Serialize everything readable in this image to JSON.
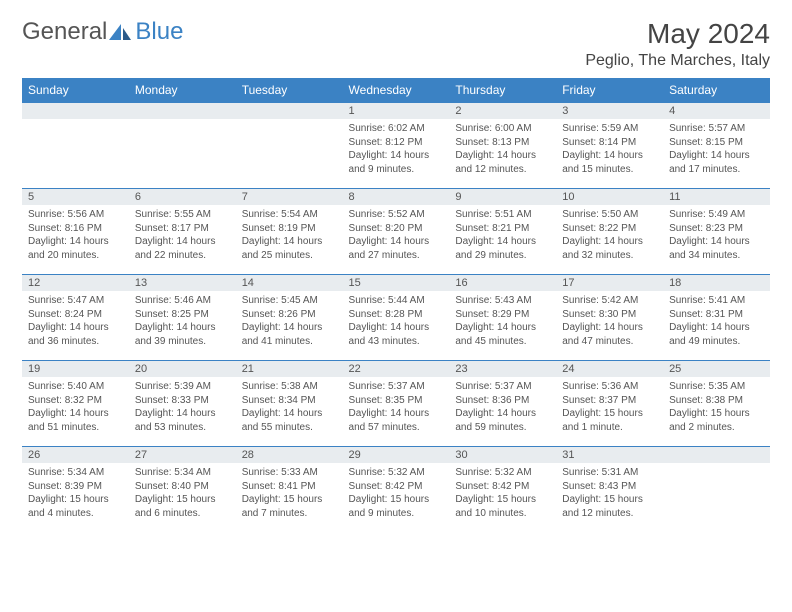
{
  "brand": {
    "name_part1": "General",
    "name_part2": "Blue",
    "logo_color": "#3b82c4"
  },
  "title": "May 2024",
  "location": "Peglio, The Marches, Italy",
  "colors": {
    "header_bg": "#3b82c4",
    "header_text": "#ffffff",
    "daynum_bg": "#e8ecef",
    "text": "#555555",
    "border": "#3b82c4"
  },
  "day_names": [
    "Sunday",
    "Monday",
    "Tuesday",
    "Wednesday",
    "Thursday",
    "Friday",
    "Saturday"
  ],
  "weeks": [
    [
      {
        "day": "",
        "lines": []
      },
      {
        "day": "",
        "lines": []
      },
      {
        "day": "",
        "lines": []
      },
      {
        "day": "1",
        "lines": [
          "Sunrise: 6:02 AM",
          "Sunset: 8:12 PM",
          "Daylight: 14 hours and 9 minutes."
        ]
      },
      {
        "day": "2",
        "lines": [
          "Sunrise: 6:00 AM",
          "Sunset: 8:13 PM",
          "Daylight: 14 hours and 12 minutes."
        ]
      },
      {
        "day": "3",
        "lines": [
          "Sunrise: 5:59 AM",
          "Sunset: 8:14 PM",
          "Daylight: 14 hours and 15 minutes."
        ]
      },
      {
        "day": "4",
        "lines": [
          "Sunrise: 5:57 AM",
          "Sunset: 8:15 PM",
          "Daylight: 14 hours and 17 minutes."
        ]
      }
    ],
    [
      {
        "day": "5",
        "lines": [
          "Sunrise: 5:56 AM",
          "Sunset: 8:16 PM",
          "Daylight: 14 hours and 20 minutes."
        ]
      },
      {
        "day": "6",
        "lines": [
          "Sunrise: 5:55 AM",
          "Sunset: 8:17 PM",
          "Daylight: 14 hours and 22 minutes."
        ]
      },
      {
        "day": "7",
        "lines": [
          "Sunrise: 5:54 AM",
          "Sunset: 8:19 PM",
          "Daylight: 14 hours and 25 minutes."
        ]
      },
      {
        "day": "8",
        "lines": [
          "Sunrise: 5:52 AM",
          "Sunset: 8:20 PM",
          "Daylight: 14 hours and 27 minutes."
        ]
      },
      {
        "day": "9",
        "lines": [
          "Sunrise: 5:51 AM",
          "Sunset: 8:21 PM",
          "Daylight: 14 hours and 29 minutes."
        ]
      },
      {
        "day": "10",
        "lines": [
          "Sunrise: 5:50 AM",
          "Sunset: 8:22 PM",
          "Daylight: 14 hours and 32 minutes."
        ]
      },
      {
        "day": "11",
        "lines": [
          "Sunrise: 5:49 AM",
          "Sunset: 8:23 PM",
          "Daylight: 14 hours and 34 minutes."
        ]
      }
    ],
    [
      {
        "day": "12",
        "lines": [
          "Sunrise: 5:47 AM",
          "Sunset: 8:24 PM",
          "Daylight: 14 hours and 36 minutes."
        ]
      },
      {
        "day": "13",
        "lines": [
          "Sunrise: 5:46 AM",
          "Sunset: 8:25 PM",
          "Daylight: 14 hours and 39 minutes."
        ]
      },
      {
        "day": "14",
        "lines": [
          "Sunrise: 5:45 AM",
          "Sunset: 8:26 PM",
          "Daylight: 14 hours and 41 minutes."
        ]
      },
      {
        "day": "15",
        "lines": [
          "Sunrise: 5:44 AM",
          "Sunset: 8:28 PM",
          "Daylight: 14 hours and 43 minutes."
        ]
      },
      {
        "day": "16",
        "lines": [
          "Sunrise: 5:43 AM",
          "Sunset: 8:29 PM",
          "Daylight: 14 hours and 45 minutes."
        ]
      },
      {
        "day": "17",
        "lines": [
          "Sunrise: 5:42 AM",
          "Sunset: 8:30 PM",
          "Daylight: 14 hours and 47 minutes."
        ]
      },
      {
        "day": "18",
        "lines": [
          "Sunrise: 5:41 AM",
          "Sunset: 8:31 PM",
          "Daylight: 14 hours and 49 minutes."
        ]
      }
    ],
    [
      {
        "day": "19",
        "lines": [
          "Sunrise: 5:40 AM",
          "Sunset: 8:32 PM",
          "Daylight: 14 hours and 51 minutes."
        ]
      },
      {
        "day": "20",
        "lines": [
          "Sunrise: 5:39 AM",
          "Sunset: 8:33 PM",
          "Daylight: 14 hours and 53 minutes."
        ]
      },
      {
        "day": "21",
        "lines": [
          "Sunrise: 5:38 AM",
          "Sunset: 8:34 PM",
          "Daylight: 14 hours and 55 minutes."
        ]
      },
      {
        "day": "22",
        "lines": [
          "Sunrise: 5:37 AM",
          "Sunset: 8:35 PM",
          "Daylight: 14 hours and 57 minutes."
        ]
      },
      {
        "day": "23",
        "lines": [
          "Sunrise: 5:37 AM",
          "Sunset: 8:36 PM",
          "Daylight: 14 hours and 59 minutes."
        ]
      },
      {
        "day": "24",
        "lines": [
          "Sunrise: 5:36 AM",
          "Sunset: 8:37 PM",
          "Daylight: 15 hours and 1 minute."
        ]
      },
      {
        "day": "25",
        "lines": [
          "Sunrise: 5:35 AM",
          "Sunset: 8:38 PM",
          "Daylight: 15 hours and 2 minutes."
        ]
      }
    ],
    [
      {
        "day": "26",
        "lines": [
          "Sunrise: 5:34 AM",
          "Sunset: 8:39 PM",
          "Daylight: 15 hours and 4 minutes."
        ]
      },
      {
        "day": "27",
        "lines": [
          "Sunrise: 5:34 AM",
          "Sunset: 8:40 PM",
          "Daylight: 15 hours and 6 minutes."
        ]
      },
      {
        "day": "28",
        "lines": [
          "Sunrise: 5:33 AM",
          "Sunset: 8:41 PM",
          "Daylight: 15 hours and 7 minutes."
        ]
      },
      {
        "day": "29",
        "lines": [
          "Sunrise: 5:32 AM",
          "Sunset: 8:42 PM",
          "Daylight: 15 hours and 9 minutes."
        ]
      },
      {
        "day": "30",
        "lines": [
          "Sunrise: 5:32 AM",
          "Sunset: 8:42 PM",
          "Daylight: 15 hours and 10 minutes."
        ]
      },
      {
        "day": "31",
        "lines": [
          "Sunrise: 5:31 AM",
          "Sunset: 8:43 PM",
          "Daylight: 15 hours and 12 minutes."
        ]
      },
      {
        "day": "",
        "lines": []
      }
    ]
  ]
}
